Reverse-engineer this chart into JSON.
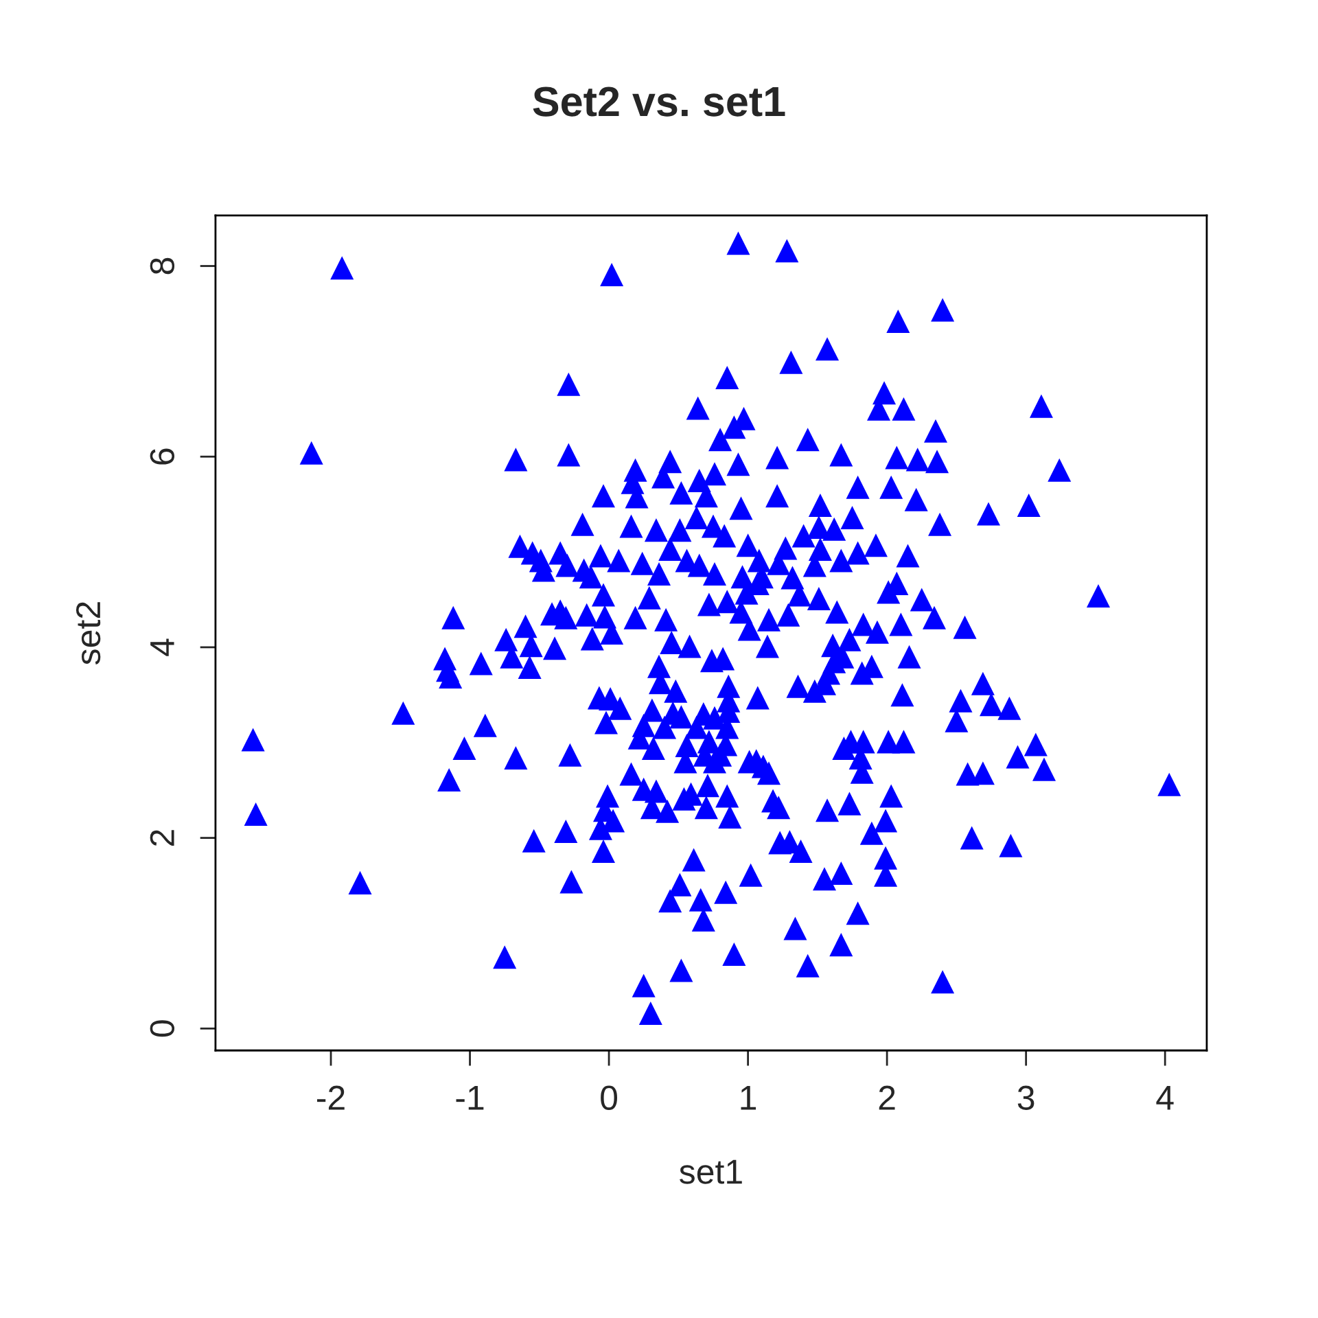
{
  "chart_data": {
    "type": "scatter",
    "title": "Set2 vs. set1",
    "xlabel": "set1",
    "ylabel": "set2",
    "xlim": [
      -2.83,
      4.3
    ],
    "ylim": [
      -0.23,
      8.53
    ],
    "xticks": [
      -2,
      -1,
      0,
      1,
      2,
      3,
      4
    ],
    "yticks": [
      0,
      2,
      4,
      6,
      8
    ],
    "grid": false,
    "marker": "triangle",
    "series": [
      {
        "color": "#0000ff",
        "x": [
          -1.92,
          0.02,
          0.93,
          1.28,
          2.4,
          2.08,
          1.57,
          1.31,
          -2.14,
          -0.29,
          0.85,
          0.64,
          1.98,
          1.94,
          2.12,
          2.35,
          3.11,
          3.24,
          2.36,
          2.22,
          2.07,
          1.67,
          1.43,
          1.21,
          0.97,
          0.9,
          0.8,
          0.76,
          0.93,
          0.44,
          0.19,
          0.17,
          -0.29,
          -0.67,
          -0.04,
          0.2,
          0.39,
          0.65,
          0.7,
          0.95,
          1.21,
          1.52,
          1.79,
          2.03,
          2.21,
          2.38,
          2.73,
          3.02,
          1.75,
          1.62,
          1.51,
          1.52,
          1.67,
          1.79,
          1.92,
          2.15,
          2.25,
          2.34,
          2.07,
          2.01,
          2.1,
          1.93,
          1.73,
          1.61,
          1.64,
          1.51,
          1.48,
          1.32,
          1.22,
          1.27,
          1.08,
          1.1,
          1.07,
          1.0,
          0.83,
          0.75,
          0.63,
          0.52,
          0.34,
          0.51,
          0.16,
          0.07,
          0.44,
          0.56,
          0.65,
          0.76,
          0.85,
          0.72,
          0.95,
          1.01,
          1.15,
          1.29,
          1.37,
          1.14,
          0.82,
          0.74,
          0.58,
          0.45,
          0.41,
          0.19,
          0.29,
          0.36,
          0.24,
          -0.04,
          -0.06,
          -0.19,
          -0.3,
          -0.35,
          -0.49,
          -0.47,
          -0.55,
          -0.64,
          -0.18,
          -0.13,
          -0.03,
          -0.16,
          -0.35,
          -0.41,
          -0.31,
          -0.6,
          -0.56,
          -0.74,
          -0.7,
          -0.57,
          -0.39,
          -0.12,
          0.02,
          -1.12,
          -1.18,
          -1.16,
          -1.14,
          -0.92,
          -1.48,
          -2.56,
          -2.54,
          -1.79,
          -0.75,
          -1.04,
          -0.89,
          -1.15,
          -0.67,
          -0.28,
          -0.54,
          -0.31,
          -0.27,
          -0.07,
          0.01,
          -0.02,
          0.08,
          -0.01,
          -0.03,
          -0.06,
          0.03,
          -0.04,
          0.16,
          0.25,
          0.31,
          0.34,
          0.42,
          0.22,
          0.25,
          0.32,
          0.4,
          0.46,
          0.37,
          0.31,
          0.36,
          0.48,
          0.52,
          0.56,
          0.55,
          0.54,
          0.59,
          0.63,
          0.68,
          0.72,
          0.76,
          0.7,
          0.69,
          0.76,
          0.84,
          0.8,
          0.86,
          0.86,
          0.85,
          0.87,
          0.85,
          0.71,
          0.86,
          1.01,
          1.06,
          1.11,
          1.15,
          1.18,
          1.22,
          1.07,
          1.36,
          1.48,
          1.55,
          1.58,
          1.62,
          1.68,
          1.57,
          1.73,
          1.69,
          1.74,
          1.83,
          1.81,
          1.82,
          1.89,
          1.82,
          2.01,
          2.12,
          2.03,
          1.99,
          1.89,
          1.99,
          1.99,
          1.79,
          1.67,
          1.67,
          1.55,
          1.43,
          1.34,
          1.38,
          1.3,
          1.23,
          1.02,
          0.9,
          0.84,
          0.51,
          0.61,
          0.66,
          0.68,
          0.44,
          0.52,
          0.25,
          0.3,
          2.4,
          2.5,
          2.53,
          2.56,
          2.58,
          2.61,
          2.69,
          2.69,
          2.75,
          2.88,
          2.89,
          2.94,
          3.07,
          3.13,
          3.52,
          4.03,
          2.16,
          2.11,
          1.83,
          0.99,
          0.96,
          1.4
        ],
        "values": [
          7.98,
          7.91,
          8.24,
          8.16,
          7.54,
          7.42,
          7.13,
          6.99,
          6.04,
          6.76,
          6.83,
          6.51,
          6.67,
          6.5,
          6.5,
          6.27,
          6.53,
          5.86,
          5.95,
          5.97,
          5.99,
          6.02,
          6.18,
          5.99,
          6.4,
          6.31,
          6.18,
          5.82,
          5.92,
          5.95,
          5.86,
          5.73,
          6.02,
          5.97,
          5.59,
          5.58,
          5.79,
          5.75,
          5.59,
          5.46,
          5.59,
          5.49,
          5.68,
          5.68,
          5.55,
          5.29,
          5.4,
          5.49,
          5.36,
          5.24,
          5.26,
          5.03,
          4.91,
          4.99,
          5.07,
          4.96,
          4.5,
          4.31,
          4.67,
          4.58,
          4.24,
          4.16,
          4.08,
          4.02,
          4.37,
          4.51,
          4.86,
          4.73,
          4.88,
          5.04,
          4.91,
          4.74,
          4.67,
          5.07,
          5.17,
          5.27,
          5.36,
          5.62,
          5.23,
          5.23,
          5.27,
          4.91,
          5.03,
          4.91,
          4.86,
          4.77,
          4.48,
          4.45,
          4.37,
          4.19,
          4.29,
          4.34,
          4.55,
          4.01,
          3.88,
          3.86,
          4.01,
          4.05,
          4.29,
          4.31,
          4.52,
          4.77,
          4.88,
          4.55,
          4.96,
          5.29,
          4.86,
          4.99,
          4.91,
          4.81,
          4.99,
          5.06,
          4.81,
          4.74,
          4.32,
          4.34,
          4.38,
          4.35,
          4.31,
          4.22,
          4.02,
          4.08,
          3.9,
          3.79,
          3.99,
          4.09,
          4.15,
          4.31,
          3.88,
          3.76,
          3.69,
          3.83,
          3.31,
          3.03,
          2.25,
          1.53,
          0.75,
          2.94,
          3.18,
          2.61,
          2.84,
          2.87,
          1.97,
          2.07,
          1.54,
          3.47,
          3.46,
          3.21,
          3.36,
          2.44,
          2.29,
          2.1,
          2.18,
          1.86,
          2.67,
          2.51,
          2.32,
          2.49,
          2.28,
          3.05,
          3.18,
          2.94,
          3.16,
          3.31,
          3.63,
          3.34,
          3.8,
          3.54,
          3.27,
          2.97,
          2.8,
          2.41,
          2.46,
          3.16,
          3.3,
          3.01,
          3.26,
          2.32,
          2.87,
          2.8,
          2.98,
          2.87,
          3.44,
          3.33,
          3.16,
          2.22,
          2.44,
          2.55,
          3.59,
          2.8,
          2.81,
          2.75,
          2.68,
          2.39,
          2.32,
          3.47,
          3.59,
          3.54,
          3.62,
          3.73,
          3.85,
          3.9,
          2.29,
          2.36,
          2.94,
          3.01,
          3.01,
          2.84,
          2.69,
          3.8,
          3.73,
          3.01,
          3.01,
          2.44,
          2.18,
          2.05,
          1.79,
          1.61,
          1.21,
          1.63,
          0.88,
          1.57,
          0.66,
          1.05,
          1.86,
          1.96,
          1.95,
          1.61,
          0.78,
          1.43,
          1.51,
          1.77,
          1.35,
          1.14,
          1.34,
          0.61,
          0.45,
          0.16,
          0.49,
          3.23,
          3.44,
          4.21,
          2.67,
          2.0,
          3.62,
          2.68,
          3.4,
          3.36,
          1.92,
          2.85,
          2.98,
          2.72,
          4.54,
          2.56,
          3.9,
          3.5,
          4.24,
          4.57,
          4.74,
          5.17
        ]
      }
    ]
  }
}
